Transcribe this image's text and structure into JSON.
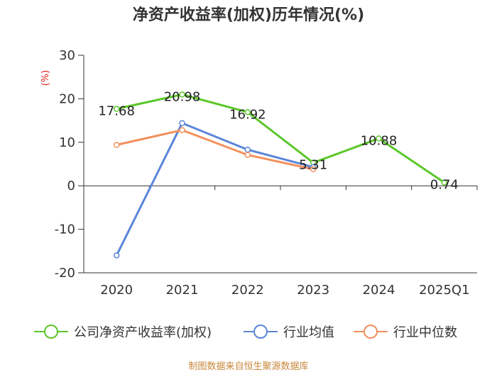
{
  "chart_data": {
    "type": "line",
    "title": "净资产收益率(加权)历年情况(%)",
    "ylabel": "(%)",
    "xlabel": "",
    "ylim": [
      -20,
      30
    ],
    "yticks": [
      30,
      20,
      10,
      0,
      -10,
      -20
    ],
    "categories": [
      "2020",
      "2021",
      "2022",
      "2023",
      "2024",
      "2025Q1"
    ],
    "grid": false,
    "legend_position": "bottom",
    "series": [
      {
        "name": "公司净资产收益率(加权)",
        "color": "#5cc72a",
        "values": [
          17.68,
          20.98,
          16.92,
          5.31,
          10.88,
          0.74
        ],
        "labels": [
          "17.68",
          "20.98",
          "16.92",
          "5.31",
          "10.88",
          "0.74"
        ]
      },
      {
        "name": "行业均值",
        "color": "#5b86d9",
        "values": [
          -16.0,
          14.4,
          8.3,
          4.3,
          null,
          null
        ]
      },
      {
        "name": "行业中位数",
        "color": "#f4905d",
        "values": [
          9.4,
          12.8,
          7.1,
          3.8,
          null,
          null
        ]
      }
    ],
    "source": "制图数据来自恒生聚源数据库"
  }
}
